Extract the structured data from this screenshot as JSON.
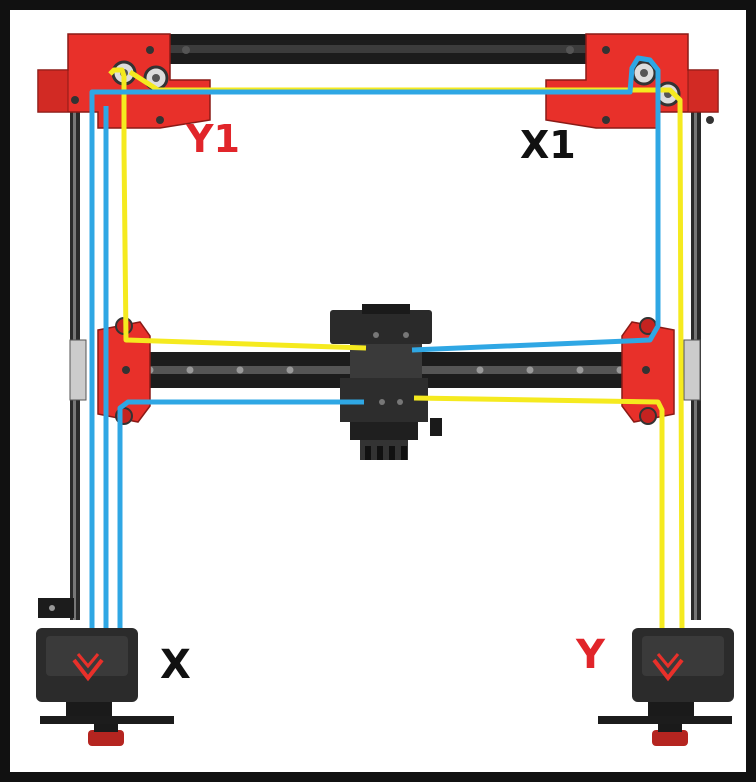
{
  "labels": {
    "y1": "Y1",
    "x1": "X1",
    "x": "X",
    "y": "Y"
  },
  "colors": {
    "frame_red": "#e8302a",
    "frame_dark": "#1c1c1c",
    "belt_yellow": "#f5ea1f",
    "belt_blue": "#2fa7e4",
    "label_red": "#e1252a",
    "label_black": "#111111",
    "background": "#ffffff",
    "border": "#111111"
  },
  "icons": {
    "motor": "stepper-motor-icon",
    "pulley": "idler-pulley-icon",
    "toolhead": "toolhead-carriage-icon"
  }
}
